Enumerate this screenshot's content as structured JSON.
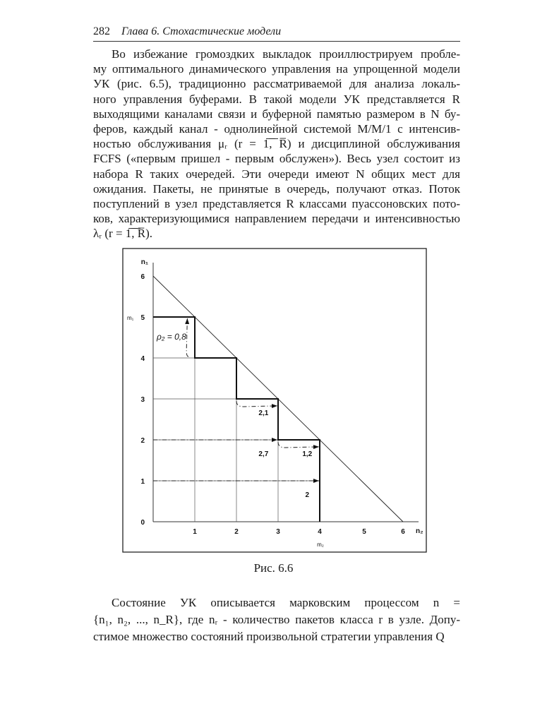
{
  "header": {
    "page_number": "282",
    "running_title": "Глава 6. Стохастические модели"
  },
  "paragraph1": [
    "Во избежание громоздких выкладок проиллюстрируем пробле-",
    "му оптимального динамического управления на упрощенной модели",
    "УК (рис. 6.5), традиционно рассматриваемой для анализа локаль-",
    "ного управления буферами. В такой модели УК представляется R",
    "выходящими каналами связи и буферной памятью размером в N бу-",
    "феров, каждый канал - однолинейной системой M/M/1 с интенсив-",
    "ностью обслуживания μᵣ (r = 1̅,̅ ̅R̅) и дисциплиной обслуживания",
    "FCFS («первым пришел - первым обслужен»). Весь узел состоит из",
    "набора R таких очередей. Эти очереди имеют N общих мест для",
    "ожидания. Пакеты, не принятые в очередь, получают отказ. Поток",
    "поступлений в узел представляется R классами пуассоновских пото-",
    "ков, характеризующимися направлением передачи и интенсивностью",
    "λᵣ (r = 1̅,̅ ̅R̅)."
  ],
  "figure": {
    "caption": "Рис. 6.6",
    "y_axis_label": "n₁",
    "x_axis_label": "n₂",
    "y_threshold_label": "m₁",
    "x_threshold_label": "m₂",
    "x_ticks": [
      "1",
      "2",
      "3",
      "4",
      "5",
      "6"
    ],
    "y_ticks": [
      "0",
      "1",
      "2",
      "3",
      "4",
      "5",
      "6"
    ],
    "diagonal": [
      [
        0,
        6
      ],
      [
        6,
        0
      ]
    ],
    "boundary": [
      [
        0,
        5
      ],
      [
        1,
        5
      ],
      [
        1,
        4
      ],
      [
        2,
        4
      ],
      [
        2,
        3
      ],
      [
        3,
        3
      ],
      [
        3,
        2
      ],
      [
        4,
        2
      ],
      [
        4,
        0
      ]
    ],
    "annotations": [
      {
        "label": "ρ₂ = 0,8"
      },
      {
        "label": "2,1"
      },
      {
        "label": "2,7"
      },
      {
        "label": "1,2"
      },
      {
        "label": "2"
      }
    ]
  },
  "paragraph2": [
    "Состояние УК описывается марковским процессом n =",
    "{n₁, n₂, ..., n_R}, где nᵣ - количество пакетов класса r в узле. Допу-",
    "стимое множество состояний произвольной стратегии управления Q"
  ]
}
